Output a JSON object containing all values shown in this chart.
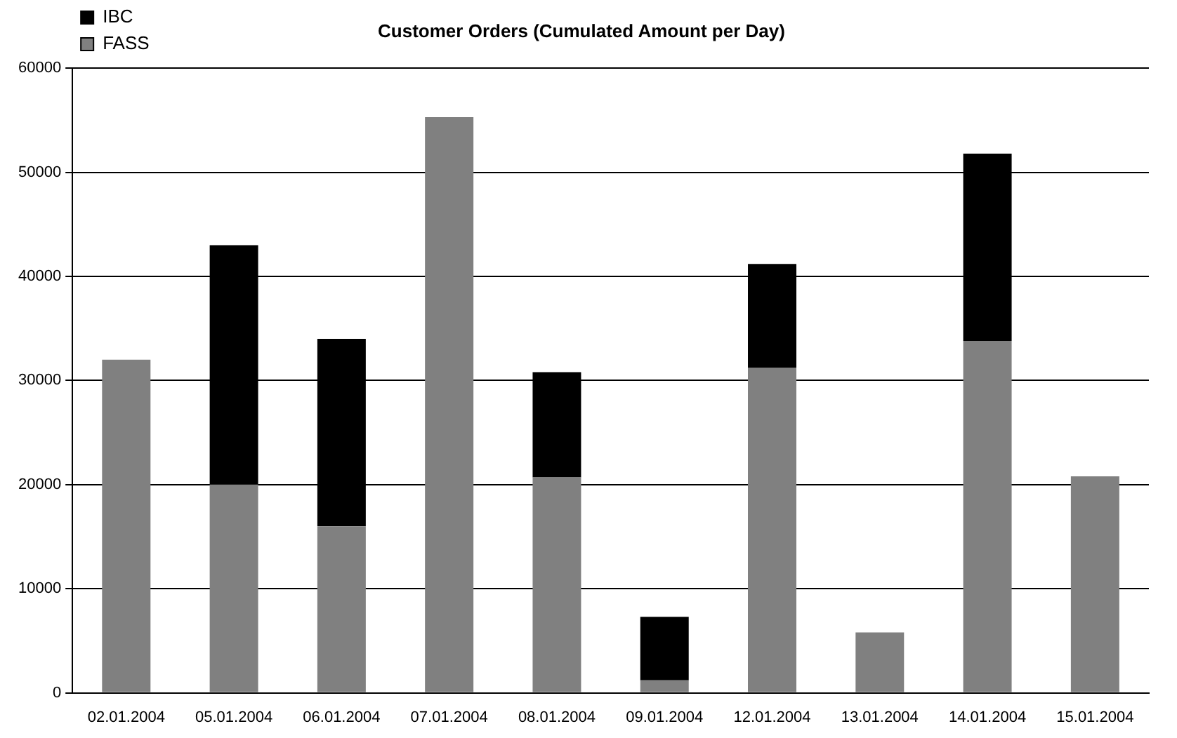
{
  "chart_data": {
    "type": "bar",
    "title": "Customer Orders (Cumulated Amount per Day)",
    "stacked": true,
    "categories": [
      "02.01.2004",
      "05.01.2004",
      "06.01.2004",
      "07.01.2004",
      "08.01.2004",
      "09.01.2004",
      "12.01.2004",
      "13.01.2004",
      "14.01.2004",
      "15.01.2004"
    ],
    "series": [
      {
        "name": "FASS",
        "color": "#808080",
        "values": [
          32000,
          20000,
          16000,
          55300,
          20700,
          1200,
          31200,
          5800,
          33800,
          20800
        ]
      },
      {
        "name": "IBC",
        "color": "#000000",
        "values": [
          0,
          23000,
          18000,
          0,
          10100,
          6100,
          10000,
          0,
          18000,
          0
        ]
      }
    ],
    "ylim": [
      0,
      60000
    ],
    "yticks": [
      0,
      10000,
      20000,
      30000,
      40000,
      50000,
      60000
    ],
    "grid": "y",
    "legend": "top left"
  }
}
